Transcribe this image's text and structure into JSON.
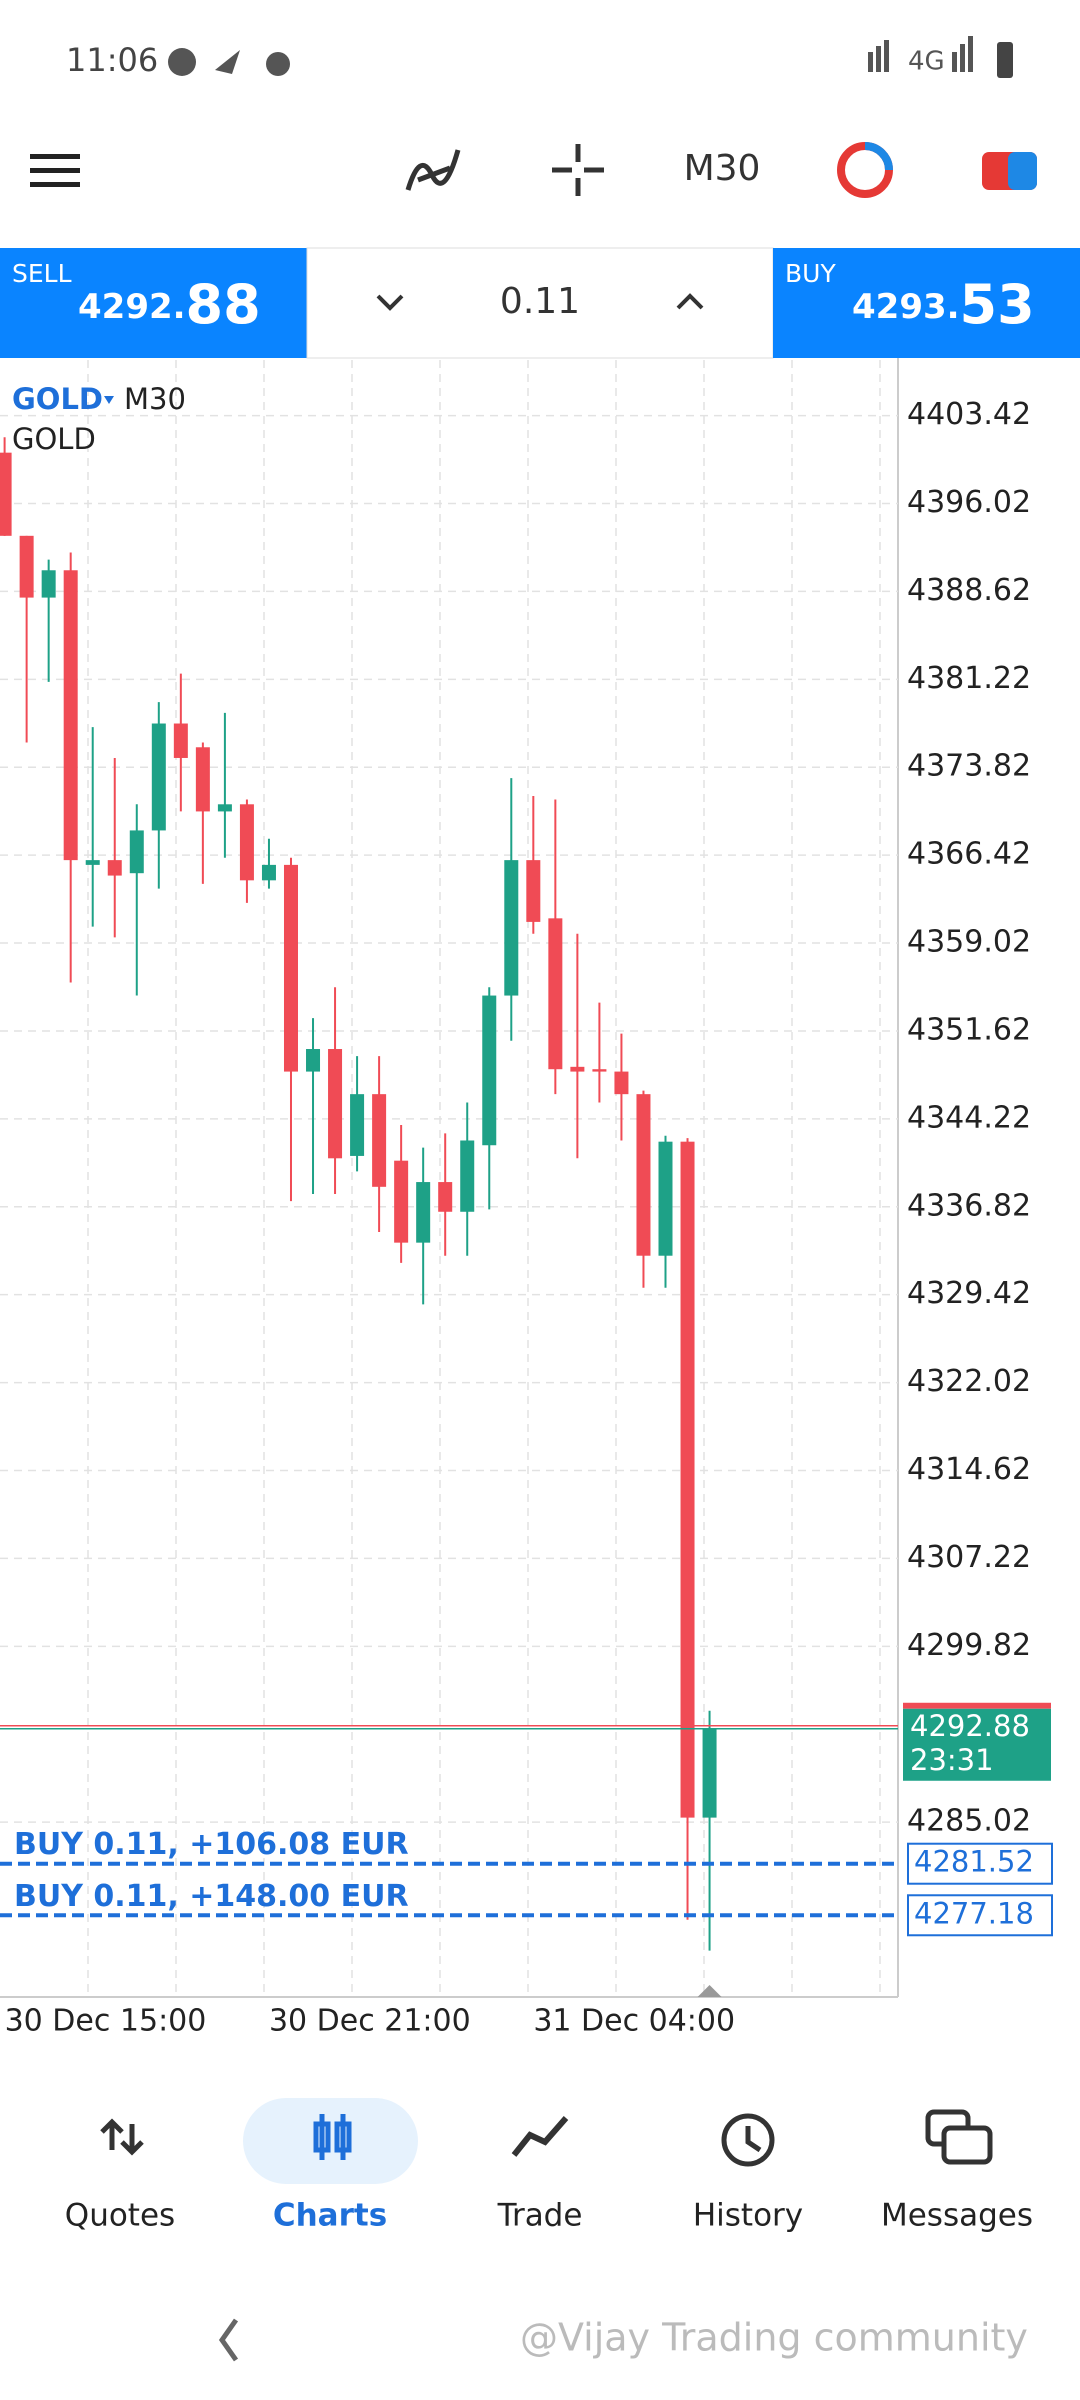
{
  "status_bar": {
    "time": "11:06",
    "network": "4G"
  },
  "toolbar": {
    "timeframe": "M30"
  },
  "trade_panel": {
    "sell": {
      "label": "SELL",
      "price_main": "4292.",
      "price_big": "88"
    },
    "lot": "0.11",
    "buy": {
      "label": "BUY",
      "price_main": "4293.",
      "price_big": "53"
    }
  },
  "chart": {
    "symbol": "GOLD",
    "timeframe": "M30",
    "subtitle": "GOLD",
    "categories": [
      "30 Dec 15:00",
      null,
      null,
      null,
      null,
      null,
      null,
      null,
      null,
      null,
      null,
      null,
      "30 Dec 21:00",
      null,
      null,
      null,
      null,
      null,
      null,
      null,
      null,
      null,
      null,
      null,
      "31 Dec 04:00",
      null,
      null,
      null,
      null,
      null,
      null,
      null,
      null
    ],
    "candles": {
      "open": [
        4400.3,
        4393.3,
        4388.1,
        4390.4,
        4365.6,
        4366.0,
        4364.9,
        4368.5,
        4377.5,
        4375.5,
        4370.1,
        4370.7,
        4364.3,
        4365.6,
        4348.2,
        4350.1,
        4341.1,
        4346.3,
        4340.7,
        4333.8,
        4338.9,
        4336.4,
        4342.0,
        4354.6,
        4366.0,
        4361.1,
        4348.6,
        4348.4,
        4348.2,
        4346.3,
        4332.7,
        4342.3,
        4285.4
      ],
      "high": [
        4401.6,
        4393.3,
        4391.3,
        4391.9,
        4377.2,
        4374.6,
        4370.7,
        4379.3,
        4381.7,
        4375.9,
        4378.4,
        4371.1,
        4367.8,
        4366.2,
        4352.7,
        4355.3,
        4349.5,
        4349.5,
        4343.7,
        4341.8,
        4343.0,
        4345.6,
        4355.3,
        4372.9,
        4371.4,
        4371.1,
        4359.8,
        4354.0,
        4351.4,
        4346.6,
        4342.8,
        4342.6,
        4294.4
      ],
      "low": [
        4393.3,
        4375.9,
        4381.0,
        4355.7,
        4360.4,
        4359.5,
        4354.6,
        4363.6,
        4370.1,
        4364.0,
        4366.2,
        4362.4,
        4363.6,
        4337.3,
        4337.9,
        4337.9,
        4339.8,
        4334.7,
        4332.1,
        4328.6,
        4332.7,
        4332.7,
        4336.6,
        4350.8,
        4359.8,
        4346.3,
        4340.9,
        4345.6,
        4342.4,
        4330.0,
        4330.0,
        4276.8,
        4274.2
      ],
      "close": [
        4393.3,
        4388.1,
        4390.4,
        4366.0,
        4366.0,
        4364.7,
        4368.5,
        4377.5,
        4374.6,
        4370.1,
        4370.7,
        4364.3,
        4365.6,
        4348.2,
        4350.1,
        4340.9,
        4346.3,
        4338.5,
        4333.8,
        4338.9,
        4336.4,
        4342.4,
        4354.6,
        4366.0,
        4360.8,
        4348.4,
        4348.2,
        4348.2,
        4346.3,
        4332.7,
        4342.3,
        4285.4,
        4292.88
      ]
    },
    "up_color": "#1ea187",
    "down_color": "#f04b55",
    "ylim": [
      4270.3,
      4408.1
    ],
    "yticks": [
      4403.42,
      4396.02,
      4388.62,
      4381.22,
      4373.82,
      4366.42,
      4359.02,
      4351.62,
      4344.22,
      4336.82,
      4329.42,
      4322.02,
      4314.62,
      4307.22,
      4299.82,
      4285.02
    ],
    "grid": true,
    "current_price": 4292.88,
    "timer": "23:31",
    "orders": [
      {
        "label": "BUY 0.11, +106.08 EUR",
        "price": 4281.52
      },
      {
        "label": "BUY 0.11, +148.00 EUR",
        "price": 4277.18
      }
    ]
  },
  "nav": {
    "items": [
      "Quotes",
      "Charts",
      "Trade",
      "History",
      "Messages"
    ],
    "active": "Charts"
  },
  "watermark": "@Vijay Trading community"
}
